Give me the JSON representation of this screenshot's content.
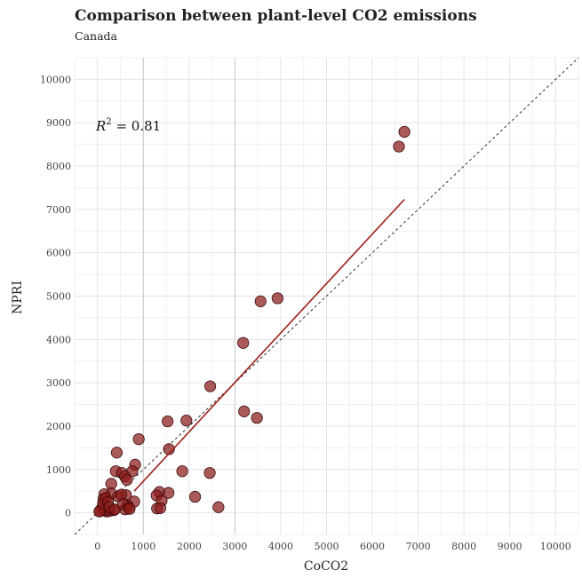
{
  "chart_data": {
    "type": "scatter",
    "title": "Comparison between plant-level CO2 emissions",
    "subtitle": "Canada",
    "xlabel": "CoCO2",
    "ylabel": "NPRI",
    "xlim": [
      -500,
      10500
    ],
    "ylim": [
      -500,
      10500
    ],
    "xticks": [
      0,
      1000,
      2000,
      3000,
      4000,
      5000,
      6000,
      7000,
      8000,
      9000,
      10000
    ],
    "yticks": [
      0,
      1000,
      2000,
      3000,
      4000,
      5000,
      6000,
      7000,
      8000,
      9000,
      10000
    ],
    "annotation": {
      "symbol": "R",
      "superscript": "2",
      "text": " = 0.81"
    },
    "grid": true,
    "colors": {
      "points": "#8b1a1a",
      "fit_line": "#9b2018",
      "identity_line": "#333333"
    },
    "fit_line": {
      "x": [
        800,
        6700
      ],
      "y": [
        500,
        7230
      ]
    },
    "identity_line": {
      "x": [
        -500,
        10500
      ],
      "y": [
        -500,
        10500
      ]
    },
    "points": {
      "x": [
        6700,
        6580,
        3930,
        3560,
        3180,
        2460,
        3200,
        3480,
        1940,
        1530,
        1560,
        900,
        820,
        760,
        420,
        400,
        530,
        600,
        640,
        620,
        300,
        300,
        150,
        130,
        1850,
        1350,
        1290,
        1400,
        1550,
        1300,
        1370,
        2450,
        2130,
        2640,
        800,
        650,
        600,
        350,
        250,
        200,
        150,
        100,
        60,
        40,
        120,
        180,
        230,
        260,
        380,
        450,
        520,
        560,
        680,
        700
      ],
      "y": [
        8790,
        8450,
        4950,
        4880,
        3920,
        2920,
        2340,
        2190,
        2130,
        2110,
        1470,
        1700,
        1110,
        960,
        1390,
        960,
        920,
        840,
        760,
        410,
        670,
        450,
        430,
        320,
        960,
        480,
        400,
        280,
        460,
        100,
        110,
        920,
        370,
        130,
        260,
        180,
        80,
        60,
        40,
        30,
        60,
        120,
        50,
        30,
        220,
        340,
        250,
        130,
        80,
        380,
        420,
        200,
        120,
        90
      ]
    }
  }
}
